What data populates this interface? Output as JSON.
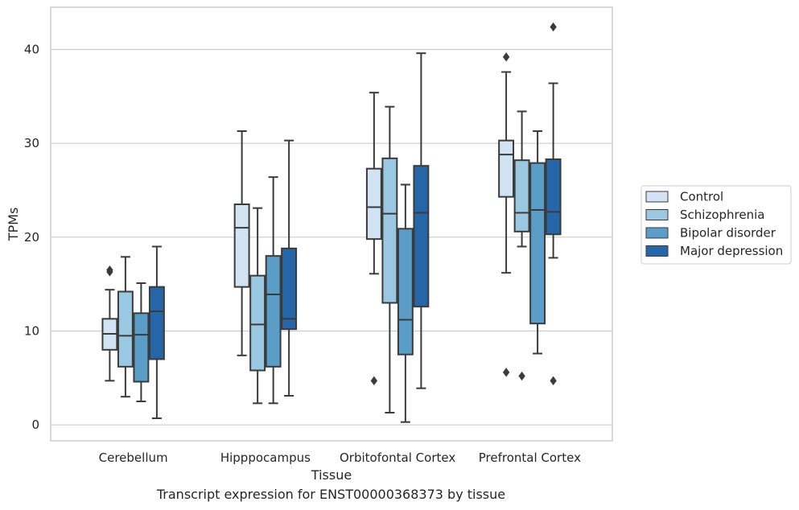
{
  "caption": "Transcript expression for ENST00000368373 by tissue",
  "chart_data": {
    "type": "box",
    "xlabel": "Tissue",
    "ylabel": "TPMs",
    "ylim": [
      -1.7,
      44.5
    ],
    "yticks": [
      0,
      10,
      20,
      30,
      40
    ],
    "grid": "horizontal",
    "legend_position": "right",
    "categories": [
      "Cerebellum",
      "Hipppocampus",
      "Orbitofontal Cortex",
      "Prefrontal Cortex"
    ],
    "series": [
      {
        "name": "Control",
        "color": "#d2e3f3",
        "boxes": [
          {
            "whislo": 4.7,
            "q1": 8.0,
            "med": 9.7,
            "q3": 11.3,
            "whishi": 14.4,
            "fliers": [
              16.3,
              16.5
            ]
          },
          {
            "whislo": 7.4,
            "q1": 14.7,
            "med": 21.0,
            "q3": 23.5,
            "whishi": 31.3,
            "fliers": []
          },
          {
            "whislo": 16.1,
            "q1": 19.8,
            "med": 23.2,
            "q3": 27.3,
            "whishi": 35.4,
            "fliers": [
              4.7
            ]
          },
          {
            "whislo": 16.2,
            "q1": 24.3,
            "med": 28.8,
            "q3": 30.3,
            "whishi": 37.6,
            "fliers": [
              39.2,
              5.6
            ]
          }
        ]
      },
      {
        "name": "Schizophrenia",
        "color": "#9ac8e0",
        "boxes": [
          {
            "whislo": 3.0,
            "q1": 6.2,
            "med": 9.5,
            "q3": 14.2,
            "whishi": 17.9,
            "fliers": []
          },
          {
            "whislo": 2.3,
            "q1": 5.8,
            "med": 10.7,
            "q3": 15.9,
            "whishi": 23.1,
            "fliers": []
          },
          {
            "whislo": 1.3,
            "q1": 13.0,
            "med": 22.5,
            "q3": 28.4,
            "whishi": 33.9,
            "fliers": []
          },
          {
            "whislo": 19.0,
            "q1": 20.6,
            "med": 22.6,
            "q3": 28.2,
            "whishi": 33.4,
            "fliers": [
              5.2
            ]
          }
        ]
      },
      {
        "name": "Bipolar disorder",
        "color": "#5a9ec8",
        "boxes": [
          {
            "whislo": 2.5,
            "q1": 4.6,
            "med": 9.6,
            "q3": 11.9,
            "whishi": 15.1,
            "fliers": []
          },
          {
            "whislo": 2.3,
            "q1": 6.2,
            "med": 13.9,
            "q3": 18.0,
            "whishi": 26.4,
            "fliers": []
          },
          {
            "whislo": 0.3,
            "q1": 7.5,
            "med": 11.2,
            "q3": 20.9,
            "whishi": 25.6,
            "fliers": []
          },
          {
            "whislo": 7.6,
            "q1": 10.8,
            "med": 22.9,
            "q3": 27.9,
            "whishi": 31.3,
            "fliers": []
          }
        ]
      },
      {
        "name": "Major depression",
        "color": "#2566a8",
        "boxes": [
          {
            "whislo": 0.7,
            "q1": 7.0,
            "med": 12.1,
            "q3": 14.7,
            "whishi": 19.0,
            "fliers": []
          },
          {
            "whislo": 3.1,
            "q1": 10.2,
            "med": 11.3,
            "q3": 18.8,
            "whishi": 30.3,
            "fliers": []
          },
          {
            "whislo": 3.9,
            "q1": 12.6,
            "med": 22.6,
            "q3": 27.6,
            "whishi": 39.6,
            "fliers": []
          },
          {
            "whislo": 17.8,
            "q1": 20.3,
            "med": 22.7,
            "q3": 28.3,
            "whishi": 36.4,
            "fliers": [
              42.4,
              4.7
            ]
          }
        ]
      }
    ]
  }
}
